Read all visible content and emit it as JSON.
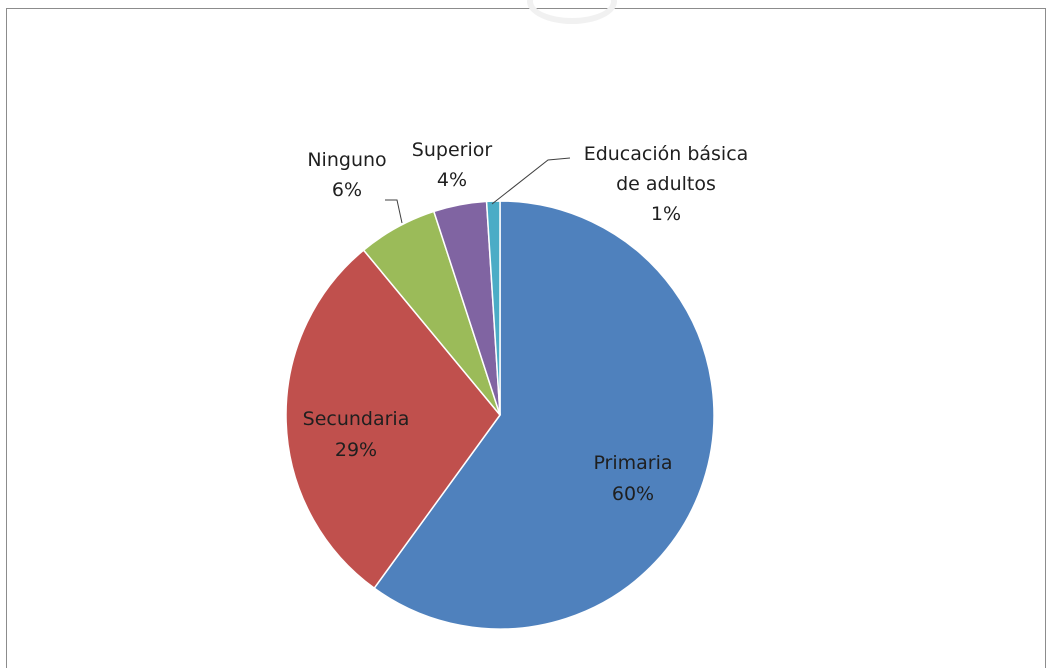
{
  "chart_data": {
    "type": "pie",
    "slices": [
      {
        "name": "Primaria",
        "value": 60,
        "percent_label": "60%",
        "color": "#4f81bd",
        "label_color": "#1f1f1f"
      },
      {
        "name": "Secundaria",
        "value": 29,
        "percent_label": "29%",
        "color": "#c0504d",
        "label_color": "#1f1f1f"
      },
      {
        "name": "Ninguno",
        "value": 6,
        "percent_label": "6%",
        "color": "#9bbb59",
        "label_color": "#1f1f1f"
      },
      {
        "name": "Superior",
        "value": 4,
        "percent_label": "4%",
        "color": "#8064a2",
        "label_color": "#1f1f1f"
      },
      {
        "name": "Educación básica de adultos",
        "name_lines": [
          "Educación básica",
          "de adultos"
        ],
        "value": 1,
        "percent_label": "1%",
        "color": "#4bacc6",
        "label_color": "#1f1f1f"
      }
    ],
    "start": "12 o'clock",
    "direction": "clockwise",
    "legend": "none",
    "title": ""
  }
}
